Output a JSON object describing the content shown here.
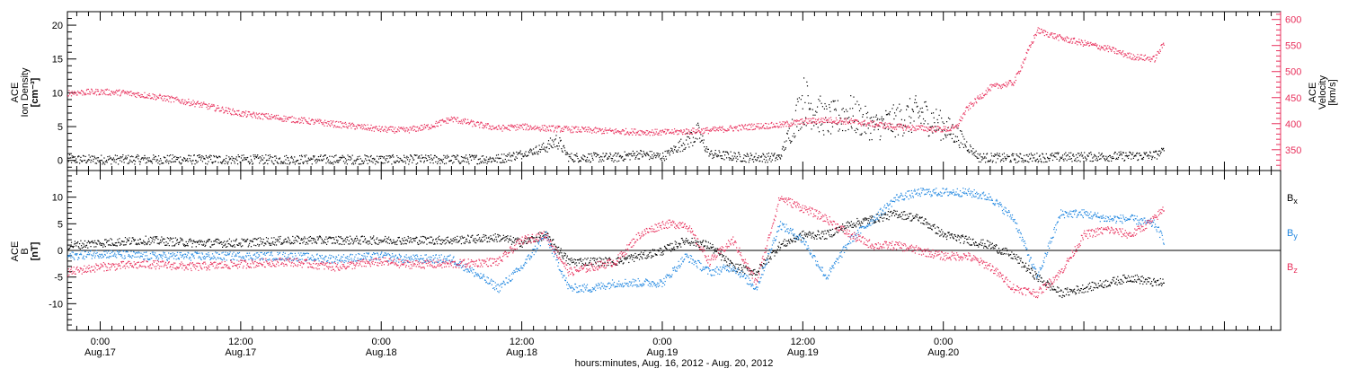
{
  "chart_data": [
    {
      "type": "scatter",
      "panel": "top",
      "left_axis": {
        "label_lines": [
          "ACE",
          "Ion Density",
          "[cm⁻³]"
        ],
        "ylim": [
          -1.5,
          22
        ],
        "ticks": [
          0,
          5,
          10,
          15,
          20
        ],
        "color": "#000000"
      },
      "right_axis": {
        "label_lines": [
          "ACE",
          "Velocity",
          "[km/s]"
        ],
        "ylim": [
          310,
          615
        ],
        "ticks": [
          350,
          400,
          450,
          500,
          550,
          600
        ],
        "color": "#e8305c"
      },
      "series": [
        {
          "axis": "left",
          "color": "#000000",
          "x": [
            -2.8,
            0,
            6,
            12,
            18,
            24,
            30,
            34,
            36,
            38,
            39,
            40,
            44,
            46,
            48,
            51,
            52,
            55,
            58,
            60,
            62,
            64,
            66,
            68,
            70,
            72,
            73,
            75,
            78,
            80,
            84,
            88,
            90,
            90.8
          ],
          "y": [
            0.2,
            0.2,
            0.2,
            0.2,
            0.2,
            0.2,
            0.2,
            0.3,
            1,
            2,
            3,
            0.5,
            0.5,
            1,
            0.6,
            4,
            1,
            0.5,
            0.5,
            9,
            6,
            7,
            5,
            6,
            7,
            5,
            4,
            0.5,
            0.4,
            0.5,
            0.6,
            0.7,
            0.8,
            1.5
          ]
        },
        {
          "axis": "right",
          "color": "#e8305c",
          "x": [
            -2.8,
            0,
            2,
            4,
            6,
            8,
            10,
            12,
            14,
            16,
            18,
            20,
            22,
            24,
            26,
            28,
            30,
            32,
            34,
            36,
            38,
            40,
            42,
            44,
            46,
            48,
            50,
            52,
            54,
            56,
            58,
            60,
            62,
            64,
            66,
            68,
            70,
            72,
            73,
            74,
            76,
            78,
            80,
            82,
            84,
            86,
            88,
            90,
            90.8
          ],
          "y": [
            460,
            462,
            460,
            455,
            448,
            440,
            430,
            420,
            415,
            410,
            405,
            400,
            395,
            390,
            388,
            395,
            410,
            400,
            392,
            395,
            392,
            390,
            388,
            386,
            385,
            384,
            386,
            388,
            392,
            396,
            398,
            405,
            408,
            405,
            400,
            395,
            392,
            390,
            392,
            430,
            470,
            480,
            580,
            565,
            555,
            545,
            530,
            525,
            555
          ]
        }
      ]
    },
    {
      "type": "scatter",
      "panel": "bottom",
      "left_axis": {
        "label_lines": [
          "ACE",
          "B",
          "[nT]"
        ],
        "ylim": [
          -15,
          15
        ],
        "ticks": [
          -10,
          -5,
          0,
          5,
          10
        ],
        "color": "#000000"
      },
      "zero_line": true,
      "series": [
        {
          "name": "Bx",
          "color": "#000000",
          "x": [
            -2.8,
            0,
            4,
            8,
            12,
            16,
            20,
            24,
            26,
            30,
            34,
            36,
            38,
            40,
            42,
            44,
            46,
            48,
            50,
            52,
            54,
            56,
            58,
            60,
            62,
            64,
            66,
            68,
            70,
            72,
            74,
            76,
            78,
            80,
            82,
            84,
            86,
            88,
            90,
            90.8
          ],
          "y": [
            1,
            1.5,
            2,
            1.5,
            1.5,
            2,
            2,
            2,
            2,
            2,
            2.5,
            1.5,
            3,
            -2,
            -2,
            -2,
            -1,
            0,
            2,
            1,
            -3,
            -4,
            1,
            3,
            3,
            5,
            6,
            7,
            6,
            3,
            2,
            1,
            -1,
            -5,
            -8,
            -7,
            -6,
            -5,
            -6,
            -6
          ]
        },
        {
          "name": "By",
          "color": "#1f86e0",
          "x": [
            -2.8,
            0,
            4,
            8,
            12,
            16,
            20,
            24,
            26,
            30,
            34,
            36,
            38,
            40,
            42,
            44,
            46,
            48,
            50,
            52,
            54,
            56,
            58,
            60,
            62,
            64,
            66,
            68,
            70,
            72,
            74,
            76,
            78,
            80,
            82,
            84,
            86,
            88,
            90,
            90.8
          ],
          "y": [
            -1,
            -0.5,
            -1,
            -1,
            -1,
            -1,
            -1.5,
            -1,
            -1.5,
            -1.5,
            -7,
            -3,
            3,
            -7,
            -7,
            -6,
            -6,
            -6,
            -1,
            -4,
            -3,
            -7,
            5,
            2,
            -5,
            2,
            6,
            10,
            11,
            11,
            11,
            10,
            6,
            -5,
            7,
            7,
            6,
            6,
            5,
            2
          ]
        },
        {
          "name": "Bz",
          "color": "#e8305c",
          "x": [
            -2.8,
            0,
            4,
            8,
            12,
            16,
            20,
            24,
            26,
            30,
            34,
            36,
            38,
            40,
            42,
            44,
            46,
            48,
            50,
            52,
            54,
            56,
            58,
            60,
            62,
            64,
            66,
            68,
            70,
            72,
            74,
            76,
            78,
            80,
            82,
            84,
            86,
            88,
            90,
            90.8
          ],
          "y": [
            -4,
            -3,
            -2.5,
            -3,
            -2.5,
            -2,
            -3,
            -2,
            -2.5,
            -2.5,
            -2,
            2,
            3,
            -4,
            -3,
            -2,
            3,
            5,
            5,
            -2,
            2,
            -6,
            10,
            8,
            6,
            3,
            1,
            1,
            0,
            -1,
            -1,
            -3,
            -7,
            -8,
            -4,
            3,
            4,
            3,
            6,
            8
          ]
        }
      ],
      "legend": [
        {
          "base": "B",
          "sub": "x",
          "color": "#000000"
        },
        {
          "base": "B",
          "sub": "y",
          "color": "#1f86e0"
        },
        {
          "base": "B",
          "sub": "z",
          "color": "#e8305c"
        }
      ]
    }
  ],
  "x_axis": {
    "xlim": [
      -2.8,
      100.8
    ],
    "major_ticks": [
      0,
      12,
      24,
      36,
      48,
      60,
      72,
      84,
      96
    ],
    "minor_step": 1,
    "tick_labels": [
      {
        "time": "0:00",
        "date": "Aug.17"
      },
      {
        "time": "12:00",
        "date": "Aug.17"
      },
      {
        "time": "0:00",
        "date": "Aug.18"
      },
      {
        "time": "12:00",
        "date": "Aug.18"
      },
      {
        "time": "0:00",
        "date": "Aug.19"
      },
      {
        "time": "12:00",
        "date": "Aug.19"
      },
      {
        "time": "0:00",
        "date": "Aug.20"
      }
    ],
    "title": "hours:minutes, Aug. 16, 2012 - Aug. 20, 2012"
  }
}
